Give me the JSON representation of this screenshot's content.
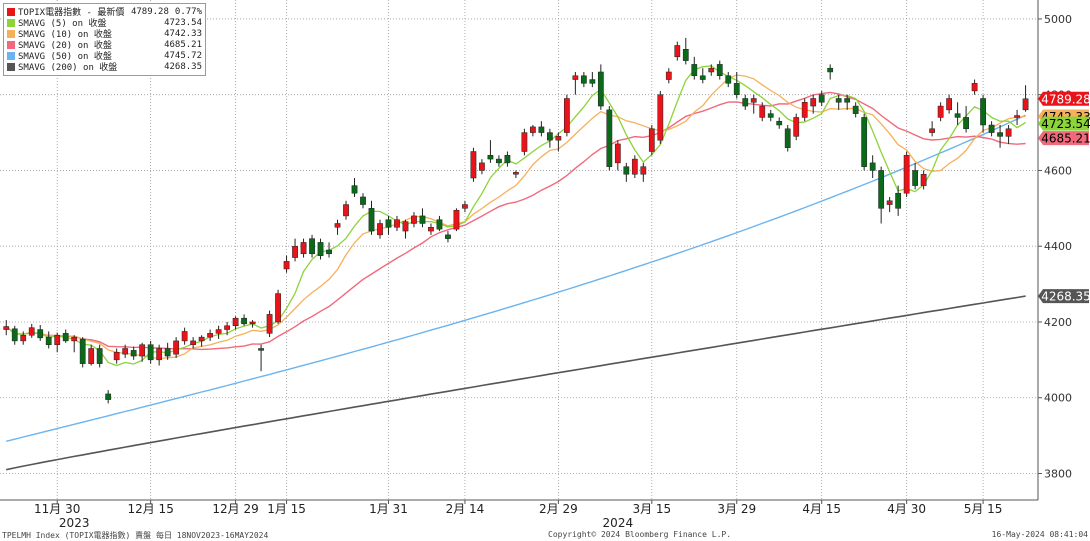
{
  "legend": {
    "items": [
      {
        "label": "TOPIX電器指數 - 最新價",
        "value": "4789.28",
        "change": "0.77%",
        "color": "#e8141a"
      },
      {
        "label": "SMAVG (5)  on 收盤",
        "value": "4723.54",
        "color": "#8cd43a"
      },
      {
        "label": "SMAVG (10)  on 收盤",
        "value": "4742.33",
        "color": "#f7b05a"
      },
      {
        "label": "SMAVG (20)  on 收盤",
        "value": "4685.21",
        "color": "#f06a7c"
      },
      {
        "label": "SMAVG (50)  on 收盤",
        "value": "4745.72",
        "color": "#6cb4ee"
      },
      {
        "label": "SMAVG (200)  on 收盤",
        "value": "4268.35",
        "color": "#555555"
      }
    ]
  },
  "footer": {
    "left": "TPELMH Index (TOPIX電器指數) 賣盤  每日 18NOV2023-16MAY2024",
    "center": "Copyright© 2024 Bloomberg Finance L.P.",
    "right": "16-May-2024 08:41:04"
  },
  "chart_data": {
    "type": "candlestick",
    "y_axis": {
      "ylim": [
        3730,
        5050
      ],
      "ticks": [
        3800,
        4000,
        4200,
        4400,
        4600,
        4800,
        5000
      ],
      "position": "right"
    },
    "x_axis": {
      "ticks": [
        {
          "label": "11月 30",
          "index": 6
        },
        {
          "label": "12月 15",
          "index": 17
        },
        {
          "label": "12月 29",
          "index": 27
        },
        {
          "label": "1月 15",
          "index": 33
        },
        {
          "label": "1月 31",
          "index": 45
        },
        {
          "label": "2月 14",
          "index": 54
        },
        {
          "label": "2月 29",
          "index": 65
        },
        {
          "label": "3月 15",
          "index": 76
        },
        {
          "label": "3月 29",
          "index": 86
        },
        {
          "label": "4月 15",
          "index": 96
        },
        {
          "label": "4月 30",
          "index": 106
        },
        {
          "label": "5月 15",
          "index": 115
        }
      ],
      "year_labels": [
        {
          "label": "2023",
          "index": 8
        },
        {
          "label": "2024",
          "index": 72
        }
      ]
    },
    "badges": [
      {
        "text": "4789.28",
        "value": 4789.28,
        "color": "#e8141a",
        "text_color": "#ffffff"
      },
      {
        "text": "4742.33",
        "value": 4742.33,
        "color": "#f7b05a",
        "text_color": "#000000"
      },
      {
        "text": "4723.54",
        "value": 4723.54,
        "color": "#8cd43a",
        "text_color": "#000000"
      },
      {
        "text": "4685.21",
        "value": 4685.21,
        "color": "#f06a7c",
        "text_color": "#000000"
      },
      {
        "text": "4268.35",
        "value": 4268.35,
        "color": "#555555",
        "text_color": "#ffffff"
      }
    ],
    "candles": [
      {
        "o": 4180,
        "h": 4205,
        "l": 4165,
        "c": 4188
      },
      {
        "o": 4182,
        "h": 4190,
        "l": 4140,
        "c": 4150
      },
      {
        "o": 4150,
        "h": 4175,
        "l": 4140,
        "c": 4165
      },
      {
        "o": 4165,
        "h": 4195,
        "l": 4158,
        "c": 4185
      },
      {
        "o": 4180,
        "h": 4192,
        "l": 4150,
        "c": 4158
      },
      {
        "o": 4160,
        "h": 4175,
        "l": 4130,
        "c": 4140
      },
      {
        "o": 4140,
        "h": 4172,
        "l": 4120,
        "c": 4165
      },
      {
        "o": 4170,
        "h": 4180,
        "l": 4145,
        "c": 4150
      },
      {
        "o": 4150,
        "h": 4165,
        "l": 4120,
        "c": 4160
      },
      {
        "o": 4155,
        "h": 4160,
        "l": 4080,
        "c": 4090
      },
      {
        "o": 4090,
        "h": 4140,
        "l": 4085,
        "c": 4130
      },
      {
        "o": 4130,
        "h": 4140,
        "l": 4080,
        "c": 4090
      },
      {
        "o": 4010,
        "h": 4020,
        "l": 3985,
        "c": 3995
      },
      {
        "o": 4100,
        "h": 4130,
        "l": 4090,
        "c": 4120
      },
      {
        "o": 4115,
        "h": 4140,
        "l": 4105,
        "c": 4130
      },
      {
        "o": 4125,
        "h": 4135,
        "l": 4100,
        "c": 4110
      },
      {
        "o": 4110,
        "h": 4145,
        "l": 4095,
        "c": 4140
      },
      {
        "o": 4140,
        "h": 4150,
        "l": 4090,
        "c": 4100
      },
      {
        "o": 4100,
        "h": 4140,
        "l": 4085,
        "c": 4130
      },
      {
        "o": 4130,
        "h": 4145,
        "l": 4100,
        "c": 4110
      },
      {
        "o": 4115,
        "h": 4160,
        "l": 4105,
        "c": 4150
      },
      {
        "o": 4150,
        "h": 4185,
        "l": 4140,
        "c": 4175
      },
      {
        "o": 4140,
        "h": 4160,
        "l": 4130,
        "c": 4150
      },
      {
        "o": 4150,
        "h": 4165,
        "l": 4135,
        "c": 4160
      },
      {
        "o": 4160,
        "h": 4180,
        "l": 4150,
        "c": 4170
      },
      {
        "o": 4170,
        "h": 4190,
        "l": 4155,
        "c": 4180
      },
      {
        "o": 4180,
        "h": 4200,
        "l": 4165,
        "c": 4190
      },
      {
        "o": 4190,
        "h": 4215,
        "l": 4180,
        "c": 4210
      },
      {
        "o": 4210,
        "h": 4220,
        "l": 4190,
        "c": 4195
      },
      {
        "o": 4195,
        "h": 4205,
        "l": 4185,
        "c": 4200
      },
      {
        "o": 4130,
        "h": 4140,
        "l": 4070,
        "c": 4125
      },
      {
        "o": 4170,
        "h": 4230,
        "l": 4160,
        "c": 4220
      },
      {
        "o": 4200,
        "h": 4285,
        "l": 4195,
        "c": 4275
      },
      {
        "o": 4340,
        "h": 4375,
        "l": 4330,
        "c": 4360
      },
      {
        "o": 4370,
        "h": 4420,
        "l": 4360,
        "c": 4400
      },
      {
        "o": 4380,
        "h": 4420,
        "l": 4370,
        "c": 4410
      },
      {
        "o": 4420,
        "h": 4430,
        "l": 4370,
        "c": 4380
      },
      {
        "o": 4410,
        "h": 4420,
        "l": 4365,
        "c": 4375
      },
      {
        "o": 4390,
        "h": 4410,
        "l": 4370,
        "c": 4380
      },
      {
        "o": 4450,
        "h": 4470,
        "l": 4430,
        "c": 4460
      },
      {
        "o": 4480,
        "h": 4520,
        "l": 4470,
        "c": 4510
      },
      {
        "o": 4560,
        "h": 4580,
        "l": 4530,
        "c": 4540
      },
      {
        "o": 4530,
        "h": 4540,
        "l": 4500,
        "c": 4510
      },
      {
        "o": 4500,
        "h": 4520,
        "l": 4430,
        "c": 4440
      },
      {
        "o": 4430,
        "h": 4470,
        "l": 4420,
        "c": 4460
      },
      {
        "o": 4470,
        "h": 4480,
        "l": 4430,
        "c": 4450
      },
      {
        "o": 4450,
        "h": 4480,
        "l": 4440,
        "c": 4470
      },
      {
        "o": 4440,
        "h": 4470,
        "l": 4420,
        "c": 4465
      },
      {
        "o": 4460,
        "h": 4490,
        "l": 4450,
        "c": 4480
      },
      {
        "o": 4480,
        "h": 4500,
        "l": 4450,
        "c": 4460
      },
      {
        "o": 4440,
        "h": 4460,
        "l": 4430,
        "c": 4450
      },
      {
        "o": 4470,
        "h": 4480,
        "l": 4440,
        "c": 4445
      },
      {
        "o": 4430,
        "h": 4440,
        "l": 4410,
        "c": 4420
      },
      {
        "o": 4445,
        "h": 4500,
        "l": 4440,
        "c": 4495
      },
      {
        "o": 4500,
        "h": 4520,
        "l": 4490,
        "c": 4510
      },
      {
        "o": 4580,
        "h": 4660,
        "l": 4570,
        "c": 4650
      },
      {
        "o": 4600,
        "h": 4630,
        "l": 4590,
        "c": 4620
      },
      {
        "o": 4640,
        "h": 4680,
        "l": 4620,
        "c": 4630
      },
      {
        "o": 4630,
        "h": 4640,
        "l": 4610,
        "c": 4620
      },
      {
        "o": 4640,
        "h": 4650,
        "l": 4610,
        "c": 4620
      },
      {
        "o": 4590,
        "h": 4600,
        "l": 4580,
        "c": 4595
      },
      {
        "o": 4650,
        "h": 4710,
        "l": 4640,
        "c": 4700
      },
      {
        "o": 4700,
        "h": 4720,
        "l": 4690,
        "c": 4715
      },
      {
        "o": 4715,
        "h": 4730,
        "l": 4690,
        "c": 4700
      },
      {
        "o": 4700,
        "h": 4710,
        "l": 4660,
        "c": 4680
      },
      {
        "o": 4680,
        "h": 4700,
        "l": 4650,
        "c": 4690
      },
      {
        "o": 4700,
        "h": 4800,
        "l": 4690,
        "c": 4790
      },
      {
        "o": 4840,
        "h": 4860,
        "l": 4800,
        "c": 4850
      },
      {
        "o": 4850,
        "h": 4860,
        "l": 4820,
        "c": 4830
      },
      {
        "o": 4840,
        "h": 4860,
        "l": 4820,
        "c": 4830
      },
      {
        "o": 4860,
        "h": 4880,
        "l": 4760,
        "c": 4770
      },
      {
        "o": 4760,
        "h": 4770,
        "l": 4600,
        "c": 4610
      },
      {
        "o": 4620,
        "h": 4680,
        "l": 4600,
        "c": 4670
      },
      {
        "o": 4610,
        "h": 4620,
        "l": 4570,
        "c": 4590
      },
      {
        "o": 4590,
        "h": 4640,
        "l": 4580,
        "c": 4630
      },
      {
        "o": 4590,
        "h": 4620,
        "l": 4570,
        "c": 4610
      },
      {
        "o": 4650,
        "h": 4720,
        "l": 4640,
        "c": 4710
      },
      {
        "o": 4680,
        "h": 4810,
        "l": 4670,
        "c": 4800
      },
      {
        "o": 4840,
        "h": 4870,
        "l": 4830,
        "c": 4860
      },
      {
        "o": 4900,
        "h": 4940,
        "l": 4890,
        "c": 4930
      },
      {
        "o": 4920,
        "h": 4950,
        "l": 4880,
        "c": 4890
      },
      {
        "o": 4880,
        "h": 4900,
        "l": 4840,
        "c": 4850
      },
      {
        "o": 4850,
        "h": 4870,
        "l": 4830,
        "c": 4840
      },
      {
        "o": 4860,
        "h": 4880,
        "l": 4850,
        "c": 4870
      },
      {
        "o": 4880,
        "h": 4890,
        "l": 4840,
        "c": 4850
      },
      {
        "o": 4850,
        "h": 4860,
        "l": 4820,
        "c": 4830
      },
      {
        "o": 4830,
        "h": 4860,
        "l": 4790,
        "c": 4800
      },
      {
        "o": 4790,
        "h": 4800,
        "l": 4760,
        "c": 4770
      },
      {
        "o": 4780,
        "h": 4800,
        "l": 4750,
        "c": 4790
      },
      {
        "o": 4740,
        "h": 4780,
        "l": 4730,
        "c": 4770
      },
      {
        "o": 4750,
        "h": 4760,
        "l": 4730,
        "c": 4740
      },
      {
        "o": 4730,
        "h": 4740,
        "l": 4710,
        "c": 4720
      },
      {
        "o": 4710,
        "h": 4720,
        "l": 4650,
        "c": 4660
      },
      {
        "o": 4690,
        "h": 4750,
        "l": 4680,
        "c": 4740
      },
      {
        "o": 4740,
        "h": 4790,
        "l": 4730,
        "c": 4780
      },
      {
        "o": 4770,
        "h": 4800,
        "l": 4750,
        "c": 4790
      },
      {
        "o": 4800,
        "h": 4810,
        "l": 4770,
        "c": 4780
      },
      {
        "o": 4870,
        "h": 4880,
        "l": 4840,
        "c": 4860
      },
      {
        "o": 4790,
        "h": 4800,
        "l": 4760,
        "c": 4780
      },
      {
        "o": 4790,
        "h": 4800,
        "l": 4760,
        "c": 4780
      },
      {
        "o": 4770,
        "h": 4780,
        "l": 4740,
        "c": 4750
      },
      {
        "o": 4740,
        "h": 4750,
        "l": 4600,
        "c": 4610
      },
      {
        "o": 4620,
        "h": 4640,
        "l": 4580,
        "c": 4600
      },
      {
        "o": 4600,
        "h": 4610,
        "l": 4460,
        "c": 4500
      },
      {
        "o": 4510,
        "h": 4530,
        "l": 4490,
        "c": 4520
      },
      {
        "o": 4540,
        "h": 4560,
        "l": 4480,
        "c": 4500
      },
      {
        "o": 4540,
        "h": 4650,
        "l": 4530,
        "c": 4640
      },
      {
        "o": 4600,
        "h": 4620,
        "l": 4550,
        "c": 4560
      },
      {
        "o": 4560,
        "h": 4600,
        "l": 4550,
        "c": 4590
      },
      {
        "o": 4700,
        "h": 4730,
        "l": 4690,
        "c": 4710
      },
      {
        "o": 4740,
        "h": 4780,
        "l": 4730,
        "c": 4770
      },
      {
        "o": 4760,
        "h": 4800,
        "l": 4750,
        "c": 4790
      },
      {
        "o": 4750,
        "h": 4780,
        "l": 4720,
        "c": 4740
      },
      {
        "o": 4740,
        "h": 4770,
        "l": 4700,
        "c": 4710
      },
      {
        "o": 4810,
        "h": 4840,
        "l": 4800,
        "c": 4830
      },
      {
        "o": 4790,
        "h": 4800,
        "l": 4700,
        "c": 4720
      },
      {
        "o": 4720,
        "h": 4730,
        "l": 4690,
        "c": 4700
      },
      {
        "o": 4700,
        "h": 4720,
        "l": 4660,
        "c": 4690
      },
      {
        "o": 4690,
        "h": 4720,
        "l": 4670,
        "c": 4710
      },
      {
        "o": 4740,
        "h": 4760,
        "l": 4720,
        "c": 4745
      },
      {
        "o": 4760,
        "h": 4825,
        "l": 4755,
        "c": 4789.28
      }
    ]
  }
}
